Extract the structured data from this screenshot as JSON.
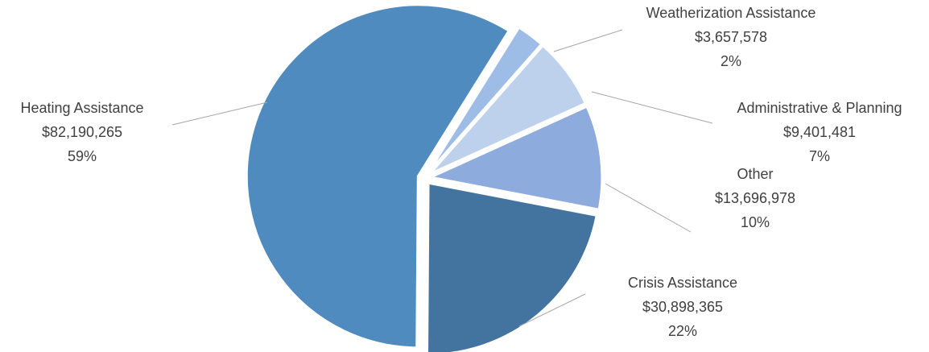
{
  "chart_data": {
    "type": "pie",
    "title": "",
    "legend": "none",
    "slices": [
      {
        "label": "Heating Assistance",
        "value": 82190265,
        "value_label": "$82,190,265",
        "percent_label": "59%",
        "color": "#4f8bbf"
      },
      {
        "label": "Weatherization Assistance",
        "value": 3657578,
        "value_label": "$3,657,578",
        "percent_label": "2%",
        "color": "#9ebde6"
      },
      {
        "label": "Administrative & Planning",
        "value": 9401481,
        "value_label": "$9,401,481",
        "percent_label": "7%",
        "color": "#bdd1ec"
      },
      {
        "label": "Other",
        "value": 13696978,
        "value_label": "$13,696,978",
        "percent_label": "10%",
        "color": "#8eabdd"
      },
      {
        "label": "Crisis Assistance",
        "value": 30898365,
        "value_label": "$30,898,365",
        "percent_label": "22%",
        "color": "#43739f"
      }
    ]
  }
}
